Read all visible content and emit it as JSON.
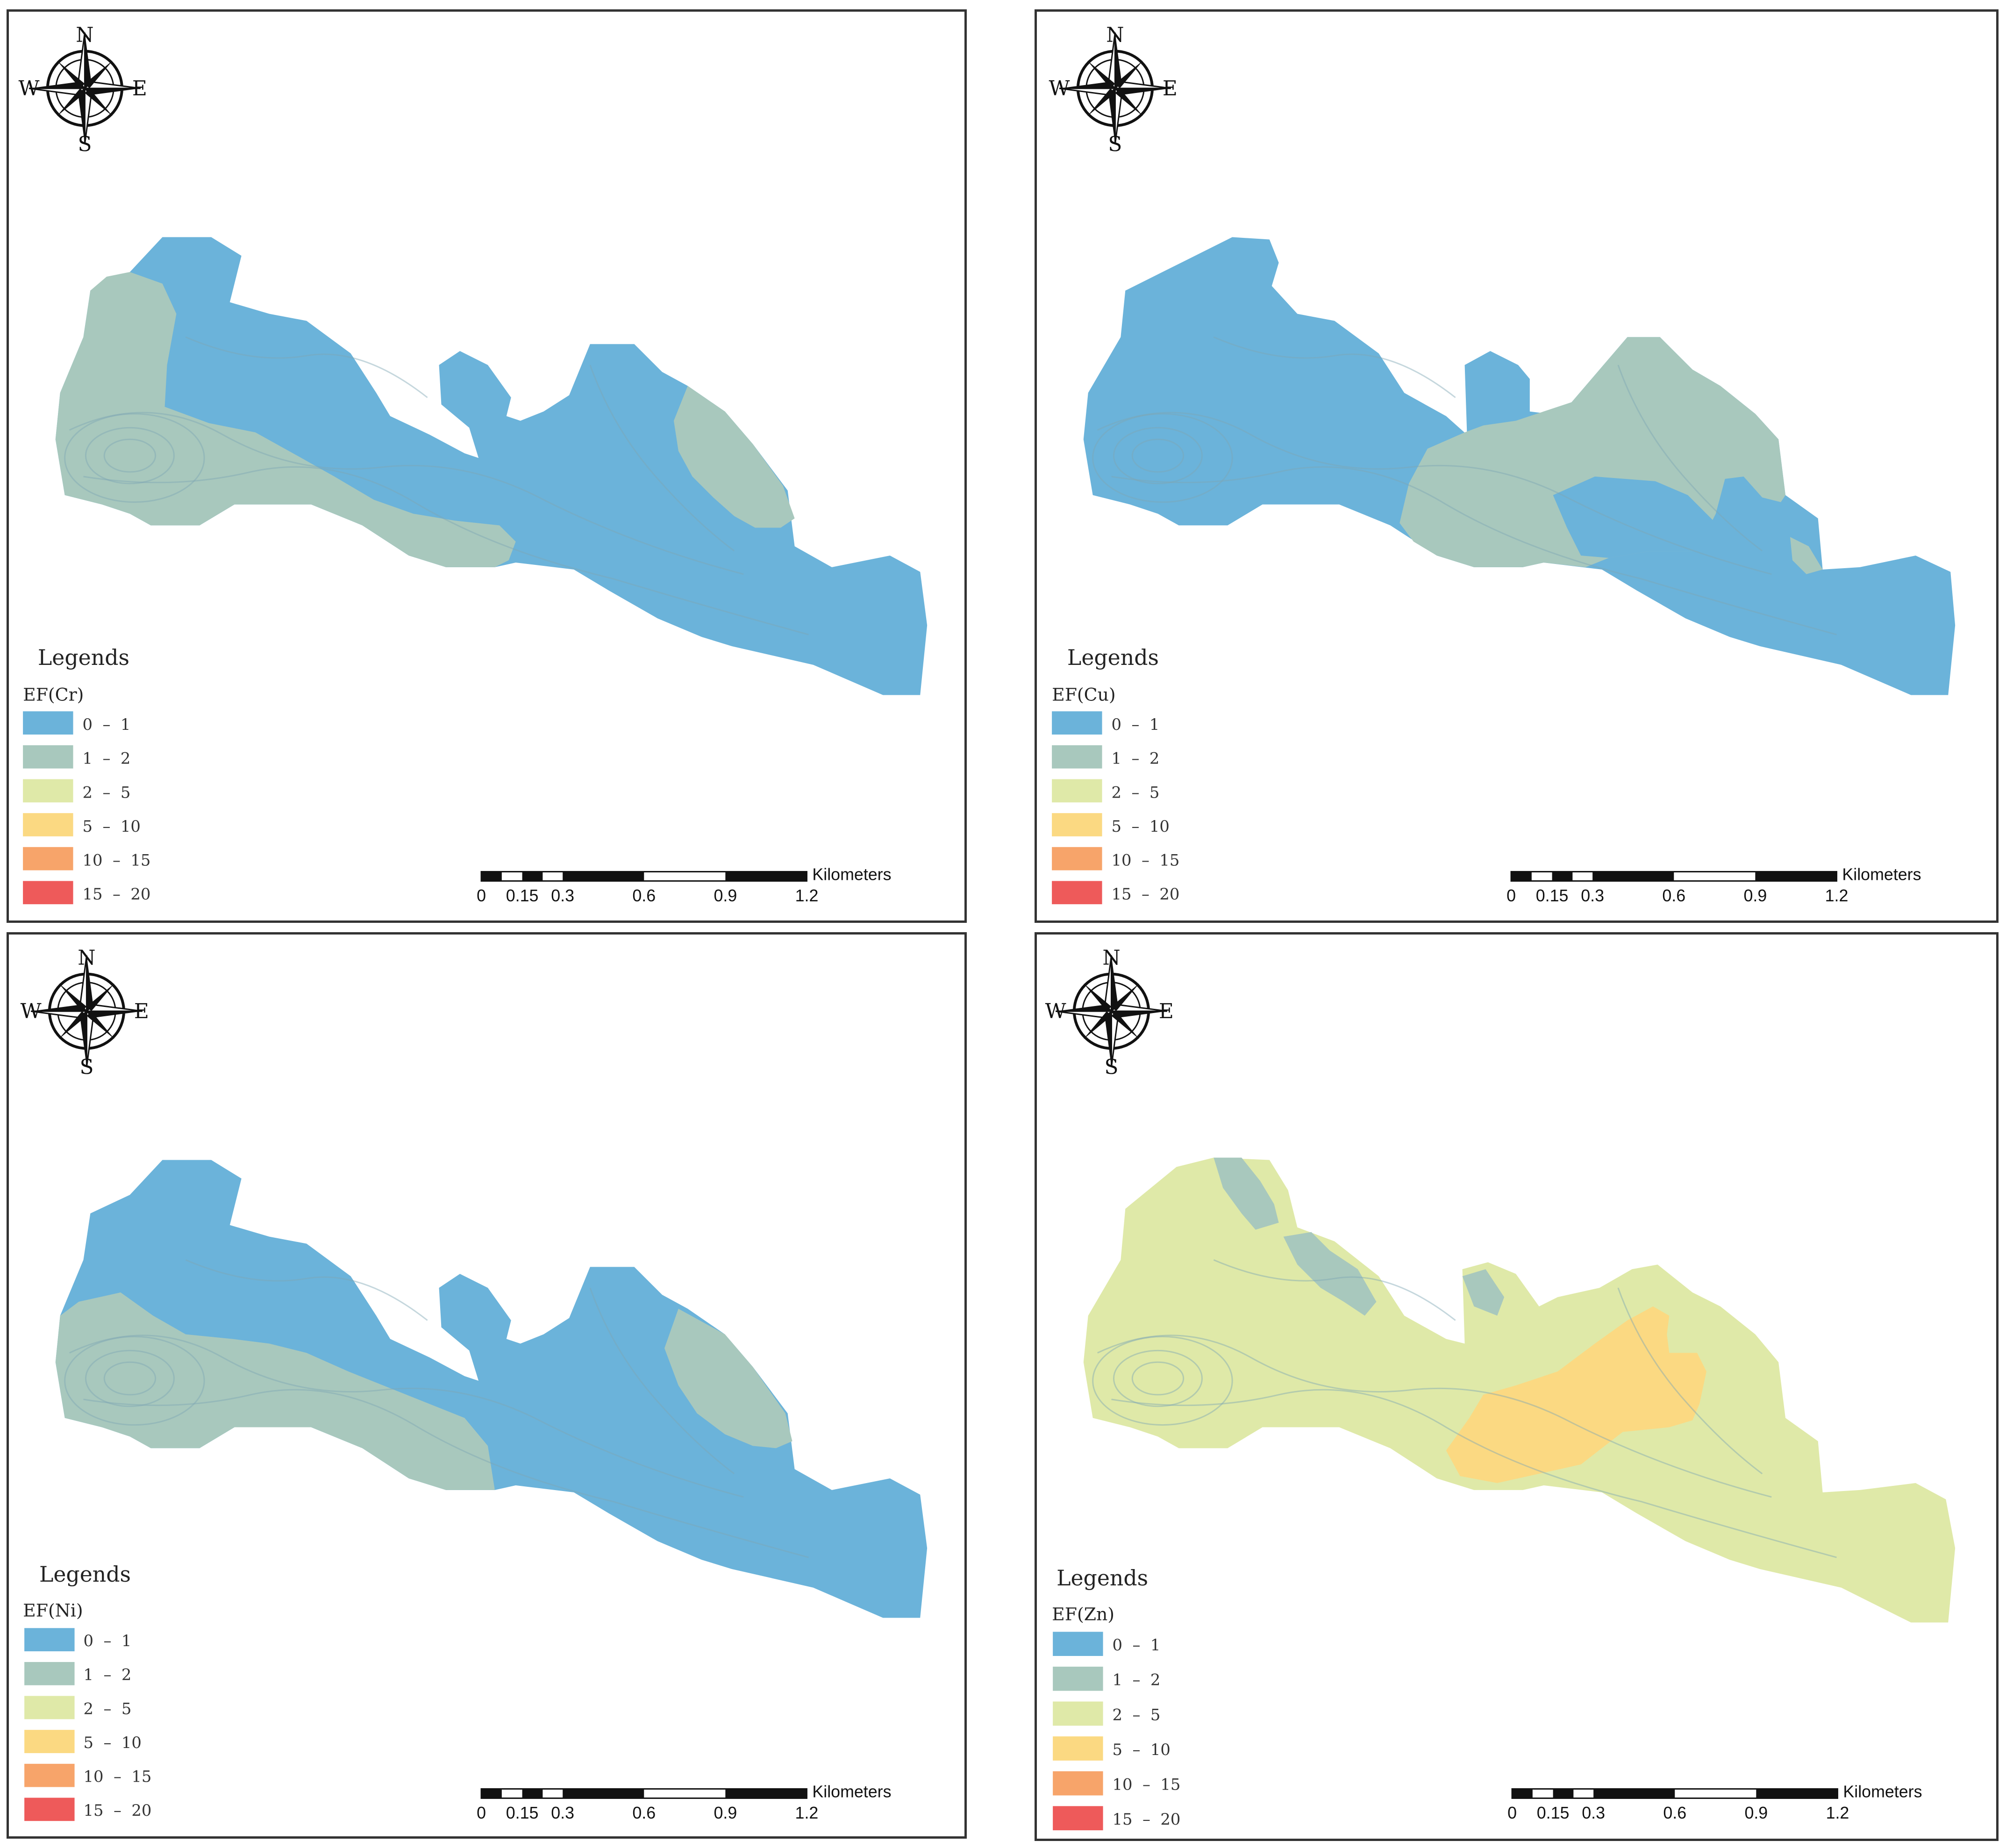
{
  "legend": {
    "title": "Legends",
    "classes": [
      {
        "label": "0  –  1",
        "color": "#6bb3da"
      },
      {
        "label": "1  –  2",
        "color": "#a8c8bd"
      },
      {
        "label": "2  –  5",
        "color": "#dfe9a8"
      },
      {
        "label": "5  –  10",
        "color": "#fbd982"
      },
      {
        "label": "10  –  15",
        "color": "#f7a46a"
      },
      {
        "label": "15  –  20",
        "color": "#ee5a5a"
      }
    ]
  },
  "compass": {
    "n": "N",
    "s": "S",
    "e": "E",
    "w": "W"
  },
  "scalebar": {
    "unit": "Kilometers",
    "ticks": [
      "0",
      "0.15",
      "0.3",
      "0.6",
      "0.9",
      "1.2"
    ]
  },
  "panels": [
    {
      "field": "EF(Cr)"
    },
    {
      "field": "EF(Cu)"
    },
    {
      "field": "EF(Ni)"
    },
    {
      "field": "EF(Zn)"
    }
  ]
}
